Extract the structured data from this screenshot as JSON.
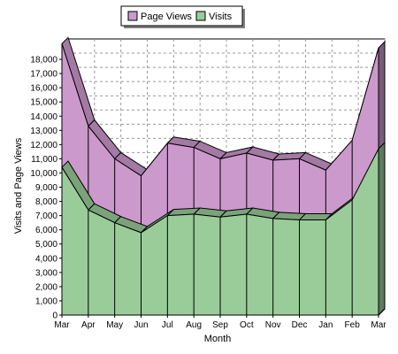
{
  "chart_data": {
    "type": "area",
    "title": "",
    "xlabel": "Month",
    "ylabel": "Visits and Page Views",
    "x": [
      "Mar",
      "Apr",
      "May",
      "Jun",
      "Jul",
      "Aug",
      "Sep",
      "Oct",
      "Nov",
      "Dec",
      "Jan",
      "Feb",
      "Mar"
    ],
    "ylim": [
      0,
      19000
    ],
    "yticks": [
      0,
      1000,
      2000,
      3000,
      4000,
      5000,
      6000,
      7000,
      8000,
      9000,
      10000,
      11000,
      12000,
      13000,
      14000,
      15000,
      16000,
      17000,
      18000
    ],
    "ytick_labels": [
      "0",
      "1,000",
      "2,000",
      "3,000",
      "4,000",
      "5,000",
      "6,000",
      "7,000",
      "8,000",
      "9,000",
      "10,000",
      "11,000",
      "12,000",
      "13,000",
      "14,000",
      "15,000",
      "16,000",
      "17,000",
      "18,000"
    ],
    "grid": true,
    "legend_position": "top",
    "series": [
      {
        "name": "Page Views",
        "color": "#cc99cc",
        "values": [
          19100,
          13300,
          11000,
          9800,
          12100,
          11800,
          11000,
          11400,
          10900,
          11000,
          10200,
          12300,
          18800
        ]
      },
      {
        "name": "Visits",
        "color": "#99cc99",
        "values": [
          10400,
          7400,
          6500,
          5800,
          7000,
          7100,
          6900,
          7100,
          6800,
          6700,
          6700,
          8100,
          11700
        ]
      }
    ]
  }
}
